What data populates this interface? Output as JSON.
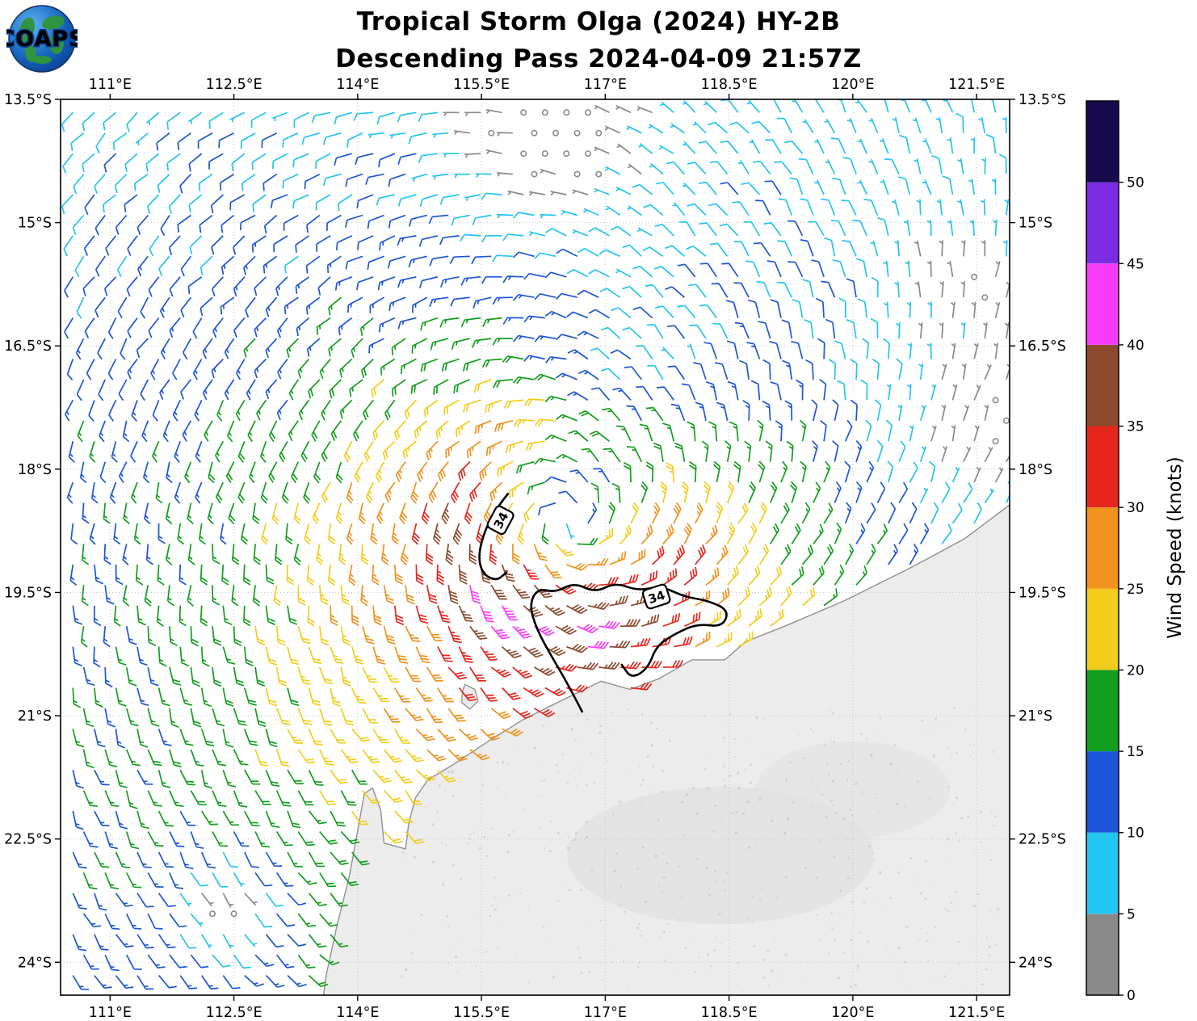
{
  "title": {
    "line1": "Tropical Storm Olga (2024) HY-2B",
    "line2": "Descending Pass 2024-04-09 21:57Z"
  },
  "logo": {
    "text": "COAPS"
  },
  "axes": {
    "lon_range": [
      110.4,
      121.9
    ],
    "lat_range": [
      -24.4,
      -13.5
    ],
    "lon_ticks": [
      {
        "value": 111,
        "label": "111°E"
      },
      {
        "value": 112.5,
        "label": "112.5°E"
      },
      {
        "value": 114,
        "label": "114°E"
      },
      {
        "value": 115.5,
        "label": "115.5°E"
      },
      {
        "value": 117,
        "label": "117°E"
      },
      {
        "value": 118.5,
        "label": "118.5°E"
      },
      {
        "value": 120,
        "label": "120°E"
      },
      {
        "value": 121.5,
        "label": "121.5°E"
      }
    ],
    "lat_ticks": [
      {
        "value": -13.5,
        "label": "13.5°S"
      },
      {
        "value": -15,
        "label": "15°S"
      },
      {
        "value": -16.5,
        "label": "16.5°S"
      },
      {
        "value": -18,
        "label": "18°S"
      },
      {
        "value": -19.5,
        "label": "19.5°S"
      },
      {
        "value": -21,
        "label": "21°S"
      },
      {
        "value": -22.5,
        "label": "22.5°S"
      },
      {
        "value": -24,
        "label": "24°S"
      }
    ]
  },
  "colorbar": {
    "label": "Wind Speed (knots)",
    "scale_max": 55,
    "bins": [
      {
        "max": 5,
        "color": "#8a8a8a"
      },
      {
        "max": 10,
        "color": "#23c5f1"
      },
      {
        "max": 15,
        "color": "#1d55d8"
      },
      {
        "max": 20,
        "color": "#129e1e"
      },
      {
        "max": 25,
        "color": "#f2cd1c"
      },
      {
        "max": 30,
        "color": "#f2921e"
      },
      {
        "max": 35,
        "color": "#e6261c"
      },
      {
        "max": 40,
        "color": "#8b4a2e"
      },
      {
        "max": 45,
        "color": "#f93cf9"
      },
      {
        "max": 50,
        "color": "#7b2be0"
      },
      {
        "max": 55,
        "color": "#170b4d"
      }
    ],
    "ticks": [
      {
        "value": 0,
        "label": "0"
      },
      {
        "value": 5,
        "label": "5"
      },
      {
        "value": 10,
        "label": "10"
      },
      {
        "value": 15,
        "label": "15"
      },
      {
        "value": 20,
        "label": "20"
      },
      {
        "value": 25,
        "label": "25"
      },
      {
        "value": 30,
        "label": "30"
      },
      {
        "value": 35,
        "label": "35"
      },
      {
        "value": 40,
        "label": "40"
      },
      {
        "value": 45,
        "label": "45"
      },
      {
        "value": 50,
        "label": "50"
      }
    ]
  },
  "map": {
    "coastline": [
      [
        121.92,
        -18.42
      ],
      [
        121.35,
        -18.85
      ],
      [
        120.7,
        -19.2
      ],
      [
        119.9,
        -19.6
      ],
      [
        119.2,
        -19.9
      ],
      [
        118.7,
        -20.1
      ],
      [
        118.45,
        -20.32
      ],
      [
        118.05,
        -20.32
      ],
      [
        117.65,
        -20.55
      ],
      [
        117.3,
        -20.68
      ],
      [
        116.95,
        -20.58
      ],
      [
        116.75,
        -20.68
      ],
      [
        116.4,
        -20.85
      ],
      [
        116.0,
        -21.05
      ],
      [
        115.6,
        -21.3
      ],
      [
        115.15,
        -21.6
      ],
      [
        114.85,
        -21.78
      ],
      [
        114.7,
        -22.0
      ],
      [
        114.62,
        -22.3
      ],
      [
        114.58,
        -22.62
      ],
      [
        114.32,
        -22.55
      ],
      [
        114.28,
        -22.15
      ],
      [
        114.18,
        -21.88
      ],
      [
        114.08,
        -21.95
      ],
      [
        114.0,
        -22.4
      ],
      [
        113.9,
        -22.95
      ],
      [
        113.75,
        -23.55
      ],
      [
        113.62,
        -24.15
      ],
      [
        113.58,
        -24.45
      ]
    ],
    "land_close": [
      121.95,
      -24.45
    ],
    "island": [
      [
        115.3,
        -20.62
      ],
      [
        115.42,
        -20.68
      ],
      [
        115.46,
        -20.82
      ],
      [
        115.36,
        -20.92
      ],
      [
        115.26,
        -20.84
      ],
      [
        115.27,
        -20.7
      ]
    ]
  },
  "chart_data": {
    "type": "scatter",
    "subtype": "wind_barb_map",
    "units": "knots",
    "seed": 42,
    "grid": {
      "lon_start": 110.55,
      "lon_end": 121.88,
      "lat_start": -13.66,
      "lat_end": -24.34,
      "dlon": 0.26,
      "dlat": 0.25
    },
    "storm": {
      "center": [
        116.55,
        -18.65
      ],
      "vmax": 33,
      "rmax": 1.4,
      "inner_exp": 0.45,
      "outer_exp": 0.7,
      "asym_south": 0.2,
      "asym_west": 0.1,
      "inflow": 0.35,
      "rotation": "clockwise-southern-hemisphere"
    },
    "background_flow": [
      -2.2,
      1.2
    ],
    "noise": {
      "speed": 1.1,
      "dir_deg": 5
    },
    "calm_spots": [
      {
        "lon": 116.4,
        "lat": -13.85,
        "sigma": 0.85,
        "depth": 0.92
      },
      {
        "lon": 112.35,
        "lat": -23.35,
        "sigma": 0.5,
        "depth": 0.85
      },
      {
        "lon": 121.65,
        "lat": -17.4,
        "sigma": 1.0,
        "depth": 0.8
      },
      {
        "lon": 121.7,
        "lat": -15.9,
        "sigma": 0.45,
        "depth": 0.7
      },
      {
        "lon": 120.9,
        "lat": -15.35,
        "sigma": 0.3,
        "depth": 0.6
      },
      {
        "lon": 117.6,
        "lat": -16.8,
        "sigma": 0.9,
        "depth": 0.45
      }
    ],
    "contour_34": {
      "label_text": "34",
      "segments": [
        [
          [
            115.82,
            -18.3
          ],
          [
            115.66,
            -18.5
          ],
          [
            115.52,
            -18.8
          ],
          [
            115.46,
            -19.08
          ],
          [
            115.52,
            -19.28
          ],
          [
            115.68,
            -19.36
          ],
          [
            115.8,
            -19.26
          ]
        ],
        [
          [
            116.72,
            -20.95
          ],
          [
            116.55,
            -20.62
          ],
          [
            116.35,
            -20.28
          ],
          [
            116.17,
            -19.95
          ],
          [
            116.08,
            -19.65
          ],
          [
            116.18,
            -19.45
          ],
          [
            116.4,
            -19.5
          ],
          [
            116.62,
            -19.38
          ],
          [
            116.88,
            -19.5
          ],
          [
            117.12,
            -19.38
          ],
          [
            117.4,
            -19.48
          ],
          [
            117.68,
            -19.42
          ],
          [
            117.95,
            -19.55
          ],
          [
            118.25,
            -19.6
          ],
          [
            118.5,
            -19.72
          ],
          [
            118.42,
            -19.92
          ],
          [
            118.12,
            -19.88
          ],
          [
            117.85,
            -20.0
          ],
          [
            117.62,
            -20.15
          ],
          [
            117.52,
            -20.42
          ],
          [
            117.32,
            -20.55
          ],
          [
            117.2,
            -20.38
          ]
        ]
      ],
      "labels": [
        {
          "lon": 115.73,
          "lat": -18.62,
          "rot": -62
        },
        {
          "lon": 117.62,
          "lat": -19.55,
          "rot": -18
        }
      ]
    }
  }
}
